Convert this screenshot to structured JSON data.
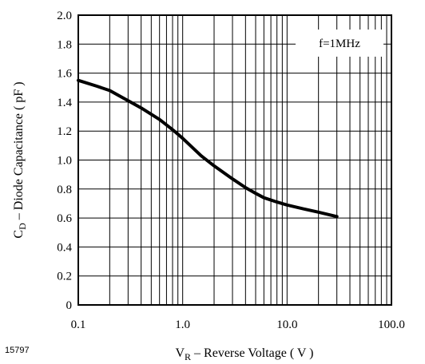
{
  "figure_id": "15797",
  "chart_data": {
    "type": "line",
    "title": "",
    "x_scale": "log",
    "xlim": [
      0.1,
      100
    ],
    "ylim": [
      0,
      2.0
    ],
    "x_ticks": [
      "0.1",
      "1.0",
      "10.0",
      "100.0"
    ],
    "y_ticks": [
      "0",
      "0.2",
      "0.4",
      "0.6",
      "0.8",
      "1.0",
      "1.2",
      "1.4",
      "1.6",
      "1.8",
      "2.0"
    ],
    "grid": true,
    "xlabel": {
      "main": "V",
      "sub": "R",
      "rest": " – Reverse Voltage ( V )"
    },
    "ylabel": {
      "main": "C",
      "sub": "D",
      "rest": " – Diode Capacitance ( pF )"
    },
    "annotation": "f=1MHz",
    "series": [
      {
        "x": [
          0.1,
          0.15,
          0.2,
          0.3,
          0.4,
          0.6,
          0.8,
          1.0,
          1.5,
          2.0,
          3.0,
          4.0,
          5.0,
          6.0,
          8.0,
          10.0,
          15.0,
          20.0,
          30.0
        ],
        "y": [
          1.55,
          1.51,
          1.48,
          1.41,
          1.36,
          1.28,
          1.21,
          1.15,
          1.03,
          0.96,
          0.87,
          0.81,
          0.77,
          0.74,
          0.71,
          0.69,
          0.66,
          0.64,
          0.61
        ]
      }
    ]
  }
}
